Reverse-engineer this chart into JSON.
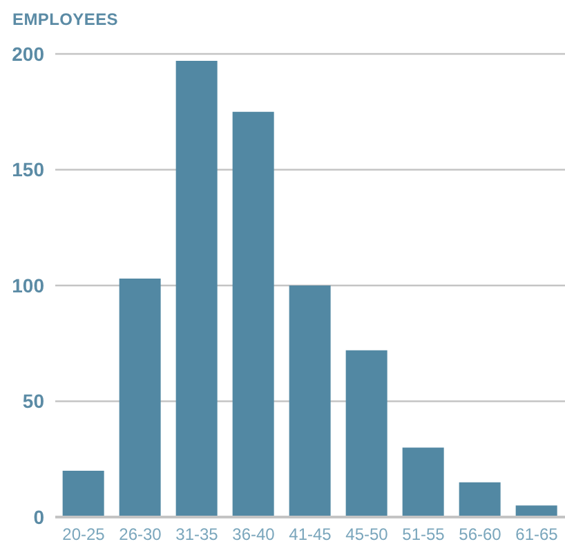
{
  "chart_data": {
    "type": "bar",
    "ylabel": "EMPLOYEES",
    "categories": [
      "20-25",
      "26-30",
      "31-35",
      "36-40",
      "41-45",
      "45-50",
      "51-55",
      "56-60",
      "61-65"
    ],
    "values": [
      20,
      103,
      197,
      175,
      100,
      72,
      30,
      15,
      5
    ],
    "color": "#5288a3",
    "ylim": [
      0,
      200
    ],
    "yticks": [
      0,
      50,
      100,
      150,
      200
    ],
    "grid": "y"
  }
}
